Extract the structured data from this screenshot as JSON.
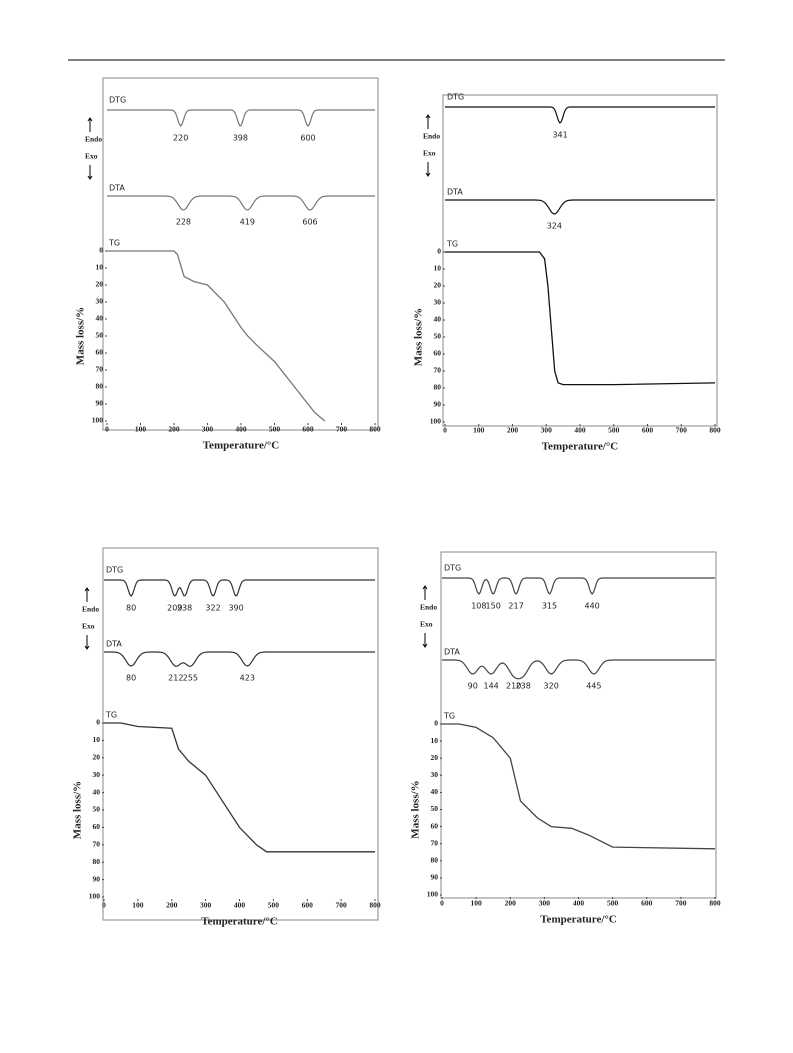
{
  "chart_data": [
    {
      "type": "line",
      "dtg_label": "DTG",
      "dta_label": "DTA",
      "tg_label": "TG",
      "endo_label": "Endo",
      "exo_label": "Exo",
      "dtg_peaks": [
        220,
        398,
        600
      ],
      "dta_peaks": [
        228,
        419,
        606
      ],
      "xlabel": "Temperature/°C",
      "ylabel": "Mass loss/%",
      "x": [
        0,
        200,
        210,
        230,
        260,
        300,
        350,
        400,
        420,
        450,
        500,
        560,
        620,
        650
      ],
      "series": [
        {
          "name": "TG",
          "color": "#777777",
          "values": [
            0,
            0,
            2,
            15,
            18,
            20,
            30,
            45,
            50,
            56,
            65,
            80,
            95,
            100
          ]
        }
      ],
      "xlim": [
        0,
        800
      ],
      "xticks": [
        0,
        100,
        200,
        300,
        400,
        500,
        600,
        700,
        800
      ],
      "ylim": [
        0,
        100
      ],
      "yticks": [
        0,
        10,
        20,
        30,
        40,
        50,
        60,
        70,
        80,
        90,
        100
      ]
    },
    {
      "type": "line",
      "dtg_label": "DTG",
      "dta_label": "DTA",
      "tg_label": "TG",
      "endo_label": "Endo",
      "exo_label": "Exo",
      "dtg_peaks": [
        341
      ],
      "dta_peaks": [
        324
      ],
      "xlabel": "Temperature/°C",
      "ylabel": "Mass loss/%",
      "x": [
        0,
        280,
        295,
        305,
        315,
        325,
        335,
        350,
        500,
        800
      ],
      "series": [
        {
          "name": "TG",
          "color": "#111111",
          "values": [
            0,
            0,
            4,
            20,
            45,
            70,
            77,
            78,
            78,
            77
          ]
        }
      ],
      "xlim": [
        0,
        800
      ],
      "xticks": [
        0,
        100,
        200,
        300,
        400,
        500,
        600,
        700,
        800
      ],
      "ylim": [
        0,
        100
      ],
      "yticks": [
        0,
        10,
        20,
        30,
        40,
        50,
        60,
        70,
        80,
        90,
        100
      ]
    },
    {
      "type": "line",
      "dtg_label": "DTG",
      "dta_label": "DTA",
      "tg_label": "TG",
      "endo_label": "Endo",
      "exo_label": "Exo",
      "dtg_peaks": [
        80,
        209,
        238,
        322,
        390
      ],
      "dta_peaks": [
        80,
        212,
        255,
        423
      ],
      "xlabel": "Temperature/°C",
      "ylabel": "Mass loss/%",
      "x": [
        0,
        50,
        100,
        200,
        220,
        250,
        300,
        350,
        400,
        450,
        480,
        800
      ],
      "series": [
        {
          "name": "TG",
          "color": "#333333",
          "values": [
            0,
            0,
            2,
            3,
            15,
            22,
            30,
            45,
            60,
            70,
            74,
            74
          ]
        }
      ],
      "xlim": [
        0,
        800
      ],
      "xticks": [
        0,
        100,
        200,
        300,
        400,
        500,
        600,
        700,
        800
      ],
      "ylim": [
        0,
        100
      ],
      "yticks": [
        0,
        10,
        20,
        30,
        40,
        50,
        60,
        70,
        80,
        90,
        100
      ]
    },
    {
      "type": "line",
      "dtg_label": "DTG",
      "dta_label": "DTA",
      "tg_label": "TG",
      "endo_label": "Endo",
      "exo_label": "Exo",
      "dtg_peaks": [
        108,
        150,
        217,
        315,
        440
      ],
      "dta_peaks": [
        90,
        144,
        210,
        238,
        320,
        445
      ],
      "xlabel": "Temperature/°C",
      "ylabel": "Mass loss/%",
      "x": [
        0,
        50,
        100,
        150,
        200,
        230,
        280,
        320,
        380,
        430,
        500,
        800
      ],
      "series": [
        {
          "name": "TG",
          "color": "#444444",
          "values": [
            0,
            0,
            2,
            8,
            20,
            45,
            55,
            60,
            61,
            65,
            72,
            73
          ]
        }
      ],
      "xlim": [
        0,
        800
      ],
      "xticks": [
        0,
        100,
        200,
        300,
        400,
        500,
        600,
        700,
        800
      ],
      "ylim": [
        0,
        100
      ],
      "yticks": [
        0,
        10,
        20,
        30,
        40,
        50,
        60,
        70,
        80,
        90,
        100
      ]
    }
  ]
}
